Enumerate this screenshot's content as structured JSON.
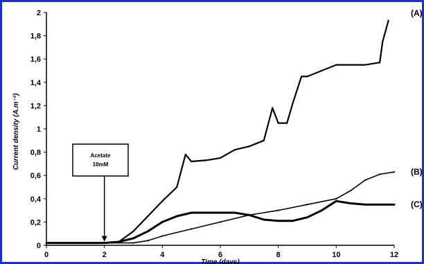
{
  "chart_data": {
    "type": "line",
    "xlabel": "Time (days)",
    "ylabel": "Current density (A.m⁻²)",
    "xlim": [
      0,
      12
    ],
    "ylim": [
      0,
      2
    ],
    "xticks": [
      "0",
      "2",
      "4",
      "6",
      "8",
      "10",
      "12"
    ],
    "yticks": [
      "0",
      "0,2",
      "0,4",
      "0,6",
      "0,8",
      "1",
      "1,2",
      "1,4",
      "1,6",
      "1,8",
      "2"
    ],
    "grid": false,
    "annotation": {
      "lines": [
        "Acetate",
        "10mM"
      ],
      "x": 2,
      "y": 0.02
    },
    "series": [
      {
        "name": "(A)",
        "x": [
          0,
          0.5,
          1,
          1.5,
          2,
          2.5,
          3,
          3.5,
          4,
          4.5,
          4.8,
          5,
          5.5,
          6,
          6.5,
          7,
          7.5,
          7.8,
          8,
          8.3,
          8.5,
          8.8,
          9,
          9.5,
          10,
          10.5,
          11,
          11.5,
          11.6,
          11.8
        ],
        "y": [
          0.02,
          0.02,
          0.02,
          0.02,
          0.02,
          0.03,
          0.12,
          0.25,
          0.38,
          0.5,
          0.78,
          0.72,
          0.73,
          0.75,
          0.82,
          0.85,
          0.9,
          1.18,
          1.05,
          1.05,
          1.22,
          1.45,
          1.45,
          1.5,
          1.55,
          1.55,
          1.55,
          1.57,
          1.75,
          1.93
        ]
      },
      {
        "name": "(B)",
        "x": [
          0,
          1,
          2,
          3,
          3.5,
          4,
          5,
          6,
          7,
          8,
          9,
          10,
          10.5,
          11,
          11.5,
          12
        ],
        "y": [
          0.02,
          0.02,
          0.02,
          0.02,
          0.04,
          0.08,
          0.14,
          0.2,
          0.26,
          0.3,
          0.35,
          0.4,
          0.47,
          0.56,
          0.61,
          0.63
        ]
      },
      {
        "name": "(C)",
        "x": [
          0,
          1,
          2,
          2.5,
          3,
          3.5,
          4,
          4.5,
          5,
          5.5,
          6,
          6.5,
          7,
          7.5,
          8,
          8.5,
          9,
          9.5,
          10,
          10.5,
          11,
          11.5,
          12
        ],
        "y": [
          0.02,
          0.02,
          0.02,
          0.03,
          0.06,
          0.12,
          0.2,
          0.25,
          0.28,
          0.28,
          0.28,
          0.28,
          0.26,
          0.22,
          0.21,
          0.21,
          0.24,
          0.3,
          0.38,
          0.36,
          0.35,
          0.35,
          0.35
        ]
      }
    ]
  }
}
